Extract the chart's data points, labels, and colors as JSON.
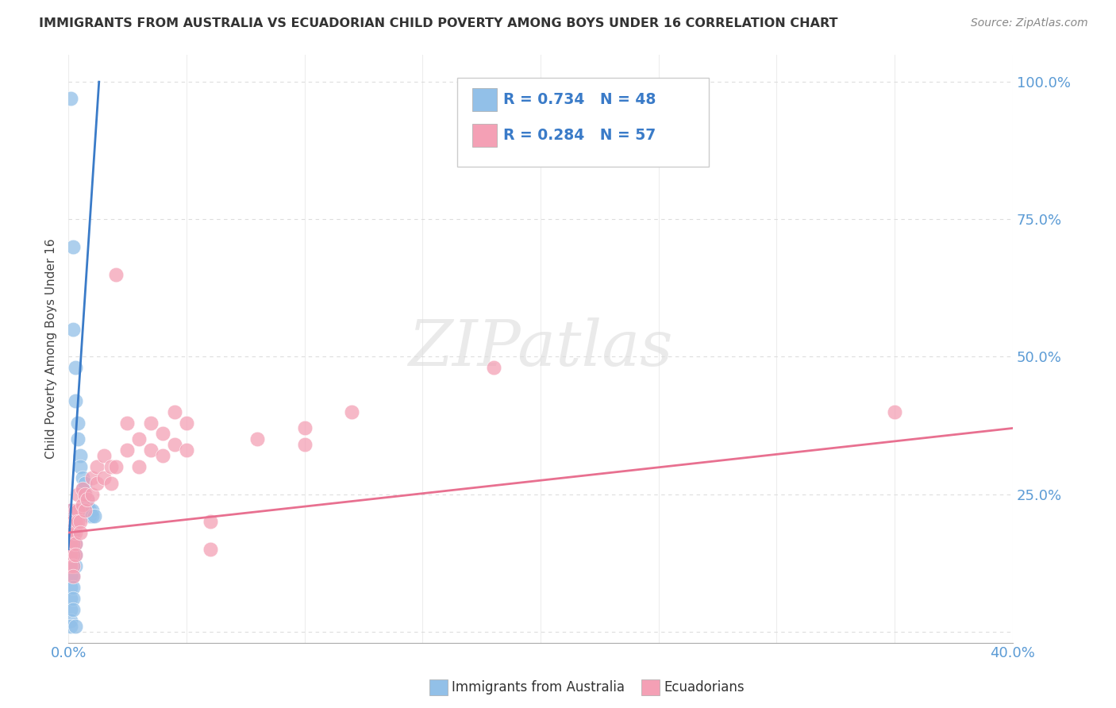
{
  "title": "IMMIGRANTS FROM AUSTRALIA VS ECUADORIAN CHILD POVERTY AMONG BOYS UNDER 16 CORRELATION CHART",
  "source": "Source: ZipAtlas.com",
  "ylabel": "Child Poverty Among Boys Under 16",
  "xlim": [
    0.0,
    0.4
  ],
  "ylim": [
    -0.02,
    1.05
  ],
  "blue_R": 0.734,
  "blue_N": 48,
  "pink_R": 0.284,
  "pink_N": 57,
  "blue_color": "#92C0E8",
  "pink_color": "#F4A0B5",
  "blue_line_color": "#3A7BC8",
  "pink_line_color": "#E87090",
  "blue_scatter": [
    [
      0.001,
      0.97
    ],
    [
      0.002,
      0.7
    ],
    [
      0.002,
      0.55
    ],
    [
      0.003,
      0.48
    ],
    [
      0.003,
      0.42
    ],
    [
      0.004,
      0.38
    ],
    [
      0.004,
      0.35
    ],
    [
      0.005,
      0.32
    ],
    [
      0.005,
      0.3
    ],
    [
      0.006,
      0.28
    ],
    [
      0.006,
      0.26
    ],
    [
      0.007,
      0.27
    ],
    [
      0.007,
      0.25
    ],
    [
      0.008,
      0.24
    ],
    [
      0.008,
      0.23
    ],
    [
      0.009,
      0.22
    ],
    [
      0.009,
      0.21
    ],
    [
      0.01,
      0.22
    ],
    [
      0.01,
      0.21
    ],
    [
      0.011,
      0.21
    ],
    [
      0.001,
      0.22
    ],
    [
      0.001,
      0.2
    ],
    [
      0.001,
      0.19
    ],
    [
      0.001,
      0.18
    ],
    [
      0.001,
      0.17
    ],
    [
      0.001,
      0.16
    ],
    [
      0.001,
      0.15
    ],
    [
      0.001,
      0.14
    ],
    [
      0.001,
      0.13
    ],
    [
      0.001,
      0.12
    ],
    [
      0.001,
      0.1
    ],
    [
      0.001,
      0.08
    ],
    [
      0.001,
      0.06
    ],
    [
      0.001,
      0.04
    ],
    [
      0.001,
      0.02
    ],
    [
      0.001,
      0.01
    ],
    [
      0.002,
      0.18
    ],
    [
      0.002,
      0.16
    ],
    [
      0.002,
      0.14
    ],
    [
      0.002,
      0.12
    ],
    [
      0.002,
      0.1
    ],
    [
      0.002,
      0.08
    ],
    [
      0.002,
      0.06
    ],
    [
      0.002,
      0.04
    ],
    [
      0.003,
      0.16
    ],
    [
      0.003,
      0.14
    ],
    [
      0.003,
      0.12
    ],
    [
      0.003,
      0.01
    ]
  ],
  "pink_scatter": [
    [
      0.001,
      0.22
    ],
    [
      0.001,
      0.2
    ],
    [
      0.001,
      0.18
    ],
    [
      0.001,
      0.16
    ],
    [
      0.001,
      0.14
    ],
    [
      0.001,
      0.12
    ],
    [
      0.002,
      0.2
    ],
    [
      0.002,
      0.18
    ],
    [
      0.002,
      0.16
    ],
    [
      0.002,
      0.14
    ],
    [
      0.002,
      0.12
    ],
    [
      0.002,
      0.1
    ],
    [
      0.003,
      0.22
    ],
    [
      0.003,
      0.2
    ],
    [
      0.003,
      0.18
    ],
    [
      0.003,
      0.16
    ],
    [
      0.003,
      0.14
    ],
    [
      0.004,
      0.25
    ],
    [
      0.004,
      0.22
    ],
    [
      0.004,
      0.2
    ],
    [
      0.005,
      0.2
    ],
    [
      0.005,
      0.18
    ],
    [
      0.006,
      0.26
    ],
    [
      0.006,
      0.23
    ],
    [
      0.007,
      0.25
    ],
    [
      0.007,
      0.22
    ],
    [
      0.008,
      0.24
    ],
    [
      0.01,
      0.28
    ],
    [
      0.01,
      0.25
    ],
    [
      0.012,
      0.3
    ],
    [
      0.012,
      0.27
    ],
    [
      0.015,
      0.32
    ],
    [
      0.015,
      0.28
    ],
    [
      0.018,
      0.3
    ],
    [
      0.018,
      0.27
    ],
    [
      0.02,
      0.65
    ],
    [
      0.02,
      0.3
    ],
    [
      0.025,
      0.38
    ],
    [
      0.025,
      0.33
    ],
    [
      0.03,
      0.35
    ],
    [
      0.03,
      0.3
    ],
    [
      0.035,
      0.38
    ],
    [
      0.035,
      0.33
    ],
    [
      0.04,
      0.36
    ],
    [
      0.04,
      0.32
    ],
    [
      0.045,
      0.4
    ],
    [
      0.045,
      0.34
    ],
    [
      0.05,
      0.38
    ],
    [
      0.05,
      0.33
    ],
    [
      0.06,
      0.2
    ],
    [
      0.06,
      0.15
    ],
    [
      0.08,
      0.35
    ],
    [
      0.1,
      0.37
    ],
    [
      0.1,
      0.34
    ],
    [
      0.12,
      0.4
    ],
    [
      0.18,
      0.48
    ],
    [
      0.35,
      0.4
    ]
  ],
  "watermark_text": "ZIPatlas",
  "background_color": "#FFFFFF",
  "grid_color": "#DDDDDD"
}
